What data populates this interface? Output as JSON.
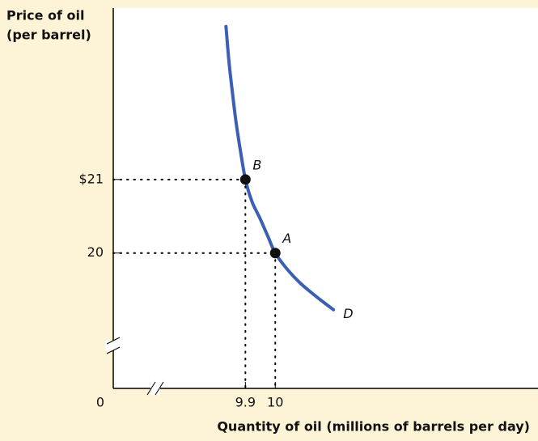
{
  "chart_data": {
    "type": "line",
    "ylabel": [
      "Price of oil",
      "(per barrel)"
    ],
    "xlabel": "Quantity of oil (millions of barrels per day)",
    "origin_label": "0",
    "xlim": [
      9.62,
      10.88
    ],
    "ylim": [
      18.82,
      23.33
    ],
    "xticks": [
      9.9,
      10
    ],
    "yticks": [
      {
        "value": 21,
        "label": "$21"
      },
      20
    ],
    "series": [
      {
        "name": "D",
        "color": "#3b5fb5",
        "x": [
          9.835,
          9.845,
          9.856,
          9.868,
          9.881,
          9.9,
          9.922,
          9.949,
          9.976,
          10,
          10.04,
          10.084,
          10.14,
          10.195
        ],
        "y": [
          23.08,
          22.6,
          22.2,
          21.8,
          21.45,
          21,
          20.7,
          20.47,
          20.22,
          20,
          19.78,
          19.59,
          19.4,
          19.23
        ]
      }
    ],
    "points": [
      {
        "label": "B",
        "x": 9.9,
        "y": 21
      },
      {
        "label": "A",
        "x": 10,
        "y": 20
      }
    ]
  }
}
